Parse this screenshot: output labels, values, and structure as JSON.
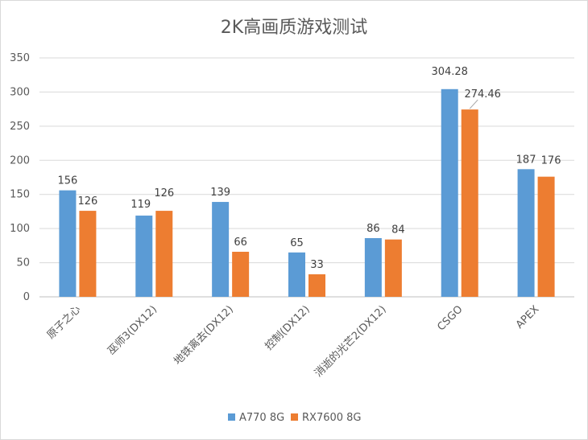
{
  "chart_data": {
    "type": "bar",
    "title": "2K高画质游戏测试",
    "categories": [
      "原子之心",
      "巫师3(DX12)",
      "地铁离去(DX12)",
      "控制(DX12)",
      "消逝的光芒2(DX12)",
      "CSGO",
      "APEX"
    ],
    "series": [
      {
        "name": "A770 8G",
        "color": "#5b9bd5",
        "values": [
          156,
          119,
          139,
          65,
          86,
          304.28,
          187
        ],
        "labels": [
          "156",
          "119",
          "139",
          "65",
          "86",
          "304.28",
          "187"
        ]
      },
      {
        "name": "RX7600 8G",
        "color": "#ed7d31",
        "values": [
          126,
          126,
          66,
          33,
          84,
          274.46,
          176
        ],
        "labels": [
          "126",
          "126",
          "66",
          "33",
          "84",
          "274.46",
          "176"
        ]
      }
    ],
    "yticks": [
      "0",
      "50",
      "100",
      "150",
      "200",
      "250",
      "300",
      "350"
    ],
    "ylim": [
      0,
      350
    ],
    "grid": true,
    "legend": "bottom"
  }
}
